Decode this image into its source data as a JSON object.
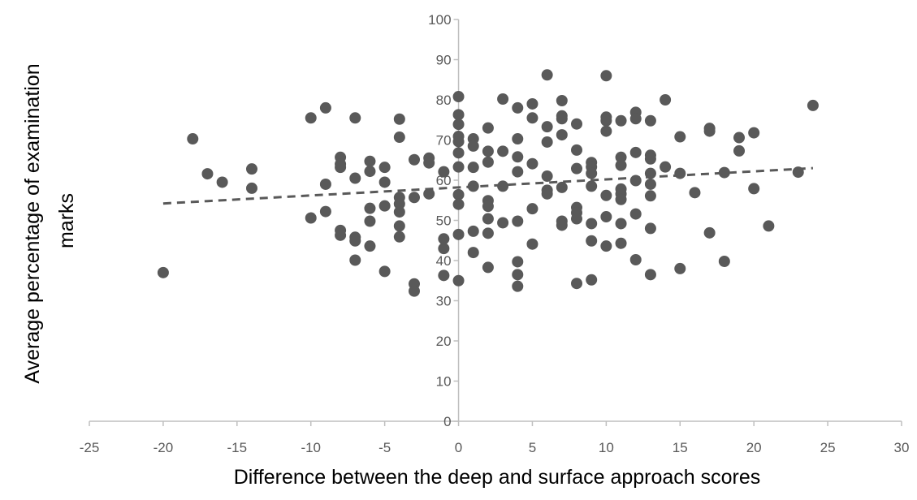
{
  "chart_data": {
    "type": "scatter",
    "title": "",
    "xlabel": "Difference between the deep and surface approach scores",
    "ylabel_lines": [
      "Average percentage of examination",
      "marks"
    ],
    "xlim": [
      -25,
      30
    ],
    "ylim": [
      0,
      100
    ],
    "x_ticks": [
      "-25",
      "-20",
      "-15",
      "-10",
      "-5",
      "0",
      "5",
      "10",
      "15",
      "20",
      "25",
      "30"
    ],
    "y_ticks": [
      "0",
      "10",
      "20",
      "30",
      "40",
      "50",
      "60",
      "70",
      "80",
      "90",
      "100"
    ],
    "grid": false,
    "legend": "none",
    "trendline": {
      "style": "dashed",
      "x": [
        -20,
        24
      ],
      "y": [
        54.2,
        63.0
      ]
    },
    "colors": {
      "marker": "#595959",
      "axis": "#bfbfbf",
      "trendline": "#595959"
    },
    "series": [
      {
        "points": [
          [
            -20,
            37
          ],
          [
            -18,
            70.3
          ],
          [
            -17,
            61.6
          ],
          [
            -16,
            59.5
          ],
          [
            -14,
            62.8
          ],
          [
            -14,
            58
          ],
          [
            -10,
            75.5
          ],
          [
            -10,
            50.6
          ],
          [
            -9,
            78
          ],
          [
            -9,
            59
          ],
          [
            -9,
            52.2
          ],
          [
            -8,
            65.7
          ],
          [
            -8,
            64
          ],
          [
            -8,
            63.2
          ],
          [
            -8,
            47.5
          ],
          [
            -8,
            46.3
          ],
          [
            -7,
            75.5
          ],
          [
            -7,
            60.5
          ],
          [
            -7,
            45.8
          ],
          [
            -7,
            44.9
          ],
          [
            -7,
            40.1
          ],
          [
            -6,
            64.7
          ],
          [
            -6,
            62.2
          ],
          [
            -6,
            53
          ],
          [
            -6,
            49.8
          ],
          [
            -6,
            43.6
          ],
          [
            -5,
            63.2
          ],
          [
            -5,
            59.5
          ],
          [
            -5,
            53.6
          ],
          [
            -5,
            37.3
          ],
          [
            -4,
            75.2
          ],
          [
            -4,
            70.7
          ],
          [
            -4,
            55.7
          ],
          [
            -4,
            54.1
          ],
          [
            -4,
            52.1
          ],
          [
            -4,
            48.6
          ],
          [
            -4,
            45.9
          ],
          [
            -3,
            65.1
          ],
          [
            -3,
            55.7
          ],
          [
            -3,
            34.2
          ],
          [
            -3,
            32.4
          ],
          [
            -2,
            65.5
          ],
          [
            -2,
            64.3
          ],
          [
            -2,
            56.6
          ],
          [
            -1,
            62.1
          ],
          [
            -1,
            45.4
          ],
          [
            -1,
            43
          ],
          [
            -1,
            36.3
          ],
          [
            0,
            80.8
          ],
          [
            0,
            76.3
          ],
          [
            0,
            73.9
          ],
          [
            0,
            70.9
          ],
          [
            0,
            69.6
          ],
          [
            0,
            66.8
          ],
          [
            0,
            63.3
          ],
          [
            0,
            56.4
          ],
          [
            0,
            54
          ],
          [
            0,
            46.5
          ],
          [
            0,
            35
          ],
          [
            1,
            70.3
          ],
          [
            1,
            68.5
          ],
          [
            1,
            63.2
          ],
          [
            1,
            58.5
          ],
          [
            1,
            47.3
          ],
          [
            1,
            42
          ],
          [
            2,
            73
          ],
          [
            2,
            67.2
          ],
          [
            2,
            64.5
          ],
          [
            2,
            54.9
          ],
          [
            2,
            53.5
          ],
          [
            2,
            50.4
          ],
          [
            2,
            46.8
          ],
          [
            2,
            38.3
          ],
          [
            3,
            80.2
          ],
          [
            3,
            67.2
          ],
          [
            3,
            58.5
          ],
          [
            3,
            49.4
          ],
          [
            4,
            78
          ],
          [
            4,
            70.3
          ],
          [
            4,
            65.8
          ],
          [
            4,
            62.1
          ],
          [
            4,
            49.8
          ],
          [
            4,
            39.7
          ],
          [
            4,
            36.5
          ],
          [
            4,
            33.6
          ],
          [
            5,
            79
          ],
          [
            5,
            75.5
          ],
          [
            5,
            64.1
          ],
          [
            5,
            52.9
          ],
          [
            5,
            44.1
          ],
          [
            6,
            86.2
          ],
          [
            6,
            73.3
          ],
          [
            6,
            69.5
          ],
          [
            6,
            61
          ],
          [
            6,
            57.5
          ],
          [
            6,
            56.6
          ],
          [
            7,
            79.8
          ],
          [
            7,
            76
          ],
          [
            7,
            75.3
          ],
          [
            7,
            71.3
          ],
          [
            7,
            58.2
          ],
          [
            7,
            49.8
          ],
          [
            7,
            48.8
          ],
          [
            8,
            74
          ],
          [
            8,
            67.5
          ],
          [
            8,
            62.9
          ],
          [
            8,
            53.2
          ],
          [
            8,
            51.9
          ],
          [
            8,
            50.4
          ],
          [
            8,
            34.3
          ],
          [
            9,
            64.4
          ],
          [
            9,
            63.3
          ],
          [
            9,
            61.7
          ],
          [
            9,
            58.5
          ],
          [
            9,
            49.2
          ],
          [
            9,
            44.9
          ],
          [
            9,
            35.2
          ],
          [
            10,
            86
          ],
          [
            10,
            75.7
          ],
          [
            10,
            74.8
          ],
          [
            10,
            72.2
          ],
          [
            10,
            56.2
          ],
          [
            10,
            50.9
          ],
          [
            10,
            43.6
          ],
          [
            11,
            74.8
          ],
          [
            11,
            65.7
          ],
          [
            11,
            63.7
          ],
          [
            11,
            57.8
          ],
          [
            11,
            56.6
          ],
          [
            11,
            55.2
          ],
          [
            11,
            49.2
          ],
          [
            11,
            44.3
          ],
          [
            12,
            76.9
          ],
          [
            12,
            75.3
          ],
          [
            12,
            66.9
          ],
          [
            12,
            59.9
          ],
          [
            12,
            51.6
          ],
          [
            12,
            40.2
          ],
          [
            13,
            74.8
          ],
          [
            13,
            66.2
          ],
          [
            13,
            65.3
          ],
          [
            13,
            61.7
          ],
          [
            13,
            59
          ],
          [
            13,
            56.1
          ],
          [
            13,
            48
          ],
          [
            13,
            36.5
          ],
          [
            14,
            80
          ],
          [
            14,
            63.3
          ],
          [
            15,
            70.8
          ],
          [
            15,
            61.7
          ],
          [
            15,
            38
          ],
          [
            16,
            56.9
          ],
          [
            17,
            72.9
          ],
          [
            17,
            72.2
          ],
          [
            17,
            46.9
          ],
          [
            18,
            61.9
          ],
          [
            18,
            39.8
          ],
          [
            19,
            70.6
          ],
          [
            19,
            67.3
          ],
          [
            20,
            71.8
          ],
          [
            20,
            57.9
          ],
          [
            21,
            48.6
          ],
          [
            23,
            62
          ],
          [
            24,
            78.6
          ]
        ]
      }
    ]
  }
}
